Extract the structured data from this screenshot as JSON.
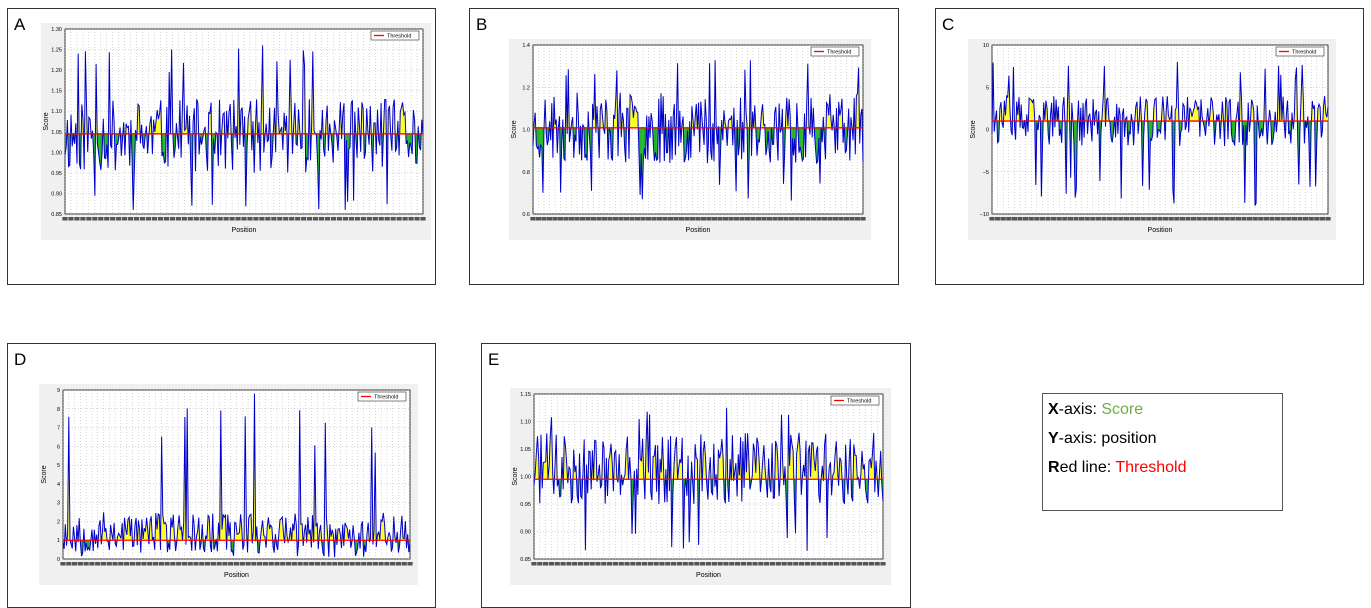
{
  "panels": [
    {
      "letter": "A"
    },
    {
      "letter": "B"
    },
    {
      "letter": "C"
    },
    {
      "letter": "D"
    },
    {
      "letter": "E"
    }
  ],
  "legend_box": {
    "line1": {
      "key": "X",
      "rest": "-axis: ",
      "value": "Score",
      "value_color": "#70ad47"
    },
    "line2": {
      "key": "Y",
      "rest": "-axis: ",
      "value": "position",
      "value_color": "#000000"
    },
    "line3": {
      "key": "R",
      "rest": "ed line: ",
      "value": "Threshold",
      "value_color": "#ff0000"
    }
  },
  "colors": {
    "series": "#0000cc",
    "threshold": "#ff0000",
    "below_fill": "#00aa00",
    "above_fill": "#ffff00",
    "plot_bg": "#f0f0f0"
  },
  "chart_data": [
    {
      "panel": "A",
      "type": "line",
      "xlabel": "Position",
      "ylabel": "Score",
      "legend": [
        "Threshold"
      ],
      "legend_position": "top-right",
      "grid": true,
      "ylim": [
        0.85,
        1.3
      ],
      "yticks": [
        "0.85",
        "0.90",
        "0.95",
        "1.00",
        "1.05",
        "1.10",
        "1.15",
        "1.20",
        "1.25",
        "1.30"
      ],
      "threshold": 1.045,
      "n_points": 300,
      "seed": 11,
      "min_value": 0.86,
      "max_value": 1.26,
      "typical_low": 0.95,
      "typical_high": 1.13
    },
    {
      "panel": "B",
      "type": "line",
      "xlabel": "Position",
      "ylabel": "Score",
      "legend": [
        "Threshold"
      ],
      "legend_position": "top-right",
      "grid": true,
      "ylim": [
        0.5,
        1.5
      ],
      "yticks": [
        "0.6",
        "0.8",
        "1.0",
        "1.2",
        "1.4"
      ],
      "threshold": 1.01,
      "n_points": 300,
      "seed": 23,
      "min_value": 0.58,
      "max_value": 1.41,
      "typical_low": 0.8,
      "typical_high": 1.22
    },
    {
      "panel": "C",
      "type": "line",
      "xlabel": "Position",
      "ylabel": "Score",
      "legend": [
        "Threshold"
      ],
      "legend_position": "top-right",
      "grid": true,
      "ylim": [
        -10,
        10
      ],
      "yticks": [
        "−10",
        "−5",
        "0",
        "5",
        "10"
      ],
      "threshold": 1.0,
      "n_points": 300,
      "seed": 37,
      "min_value": -9.0,
      "max_value": 8.0,
      "typical_low": -2.0,
      "typical_high": 4.0
    },
    {
      "panel": "D",
      "type": "line",
      "xlabel": "Position",
      "ylabel": "Score",
      "legend": [
        "Threshold"
      ],
      "legend_position": "top-right",
      "grid": true,
      "ylim": [
        0,
        9
      ],
      "yticks": [
        "0",
        "1",
        "2",
        "3",
        "4",
        "5",
        "6",
        "7",
        "8",
        "9"
      ],
      "threshold": 1.0,
      "n_points": 300,
      "seed": 53,
      "min_value": 0.1,
      "max_value": 8.8,
      "typical_low": 0.3,
      "typical_high": 2.5
    },
    {
      "panel": "E",
      "type": "line",
      "xlabel": "Position",
      "ylabel": "Score",
      "legend": [
        "Threshold"
      ],
      "legend_position": "top-right",
      "grid": true,
      "ylim": [
        0.85,
        1.15
      ],
      "yticks": [
        "0.85",
        "0.90",
        "0.95",
        "1.00",
        "1.05",
        "1.10",
        "1.15"
      ],
      "threshold": 0.995,
      "n_points": 300,
      "seed": 71,
      "min_value": 0.865,
      "max_value": 1.125,
      "typical_low": 0.95,
      "typical_high": 1.08
    }
  ]
}
